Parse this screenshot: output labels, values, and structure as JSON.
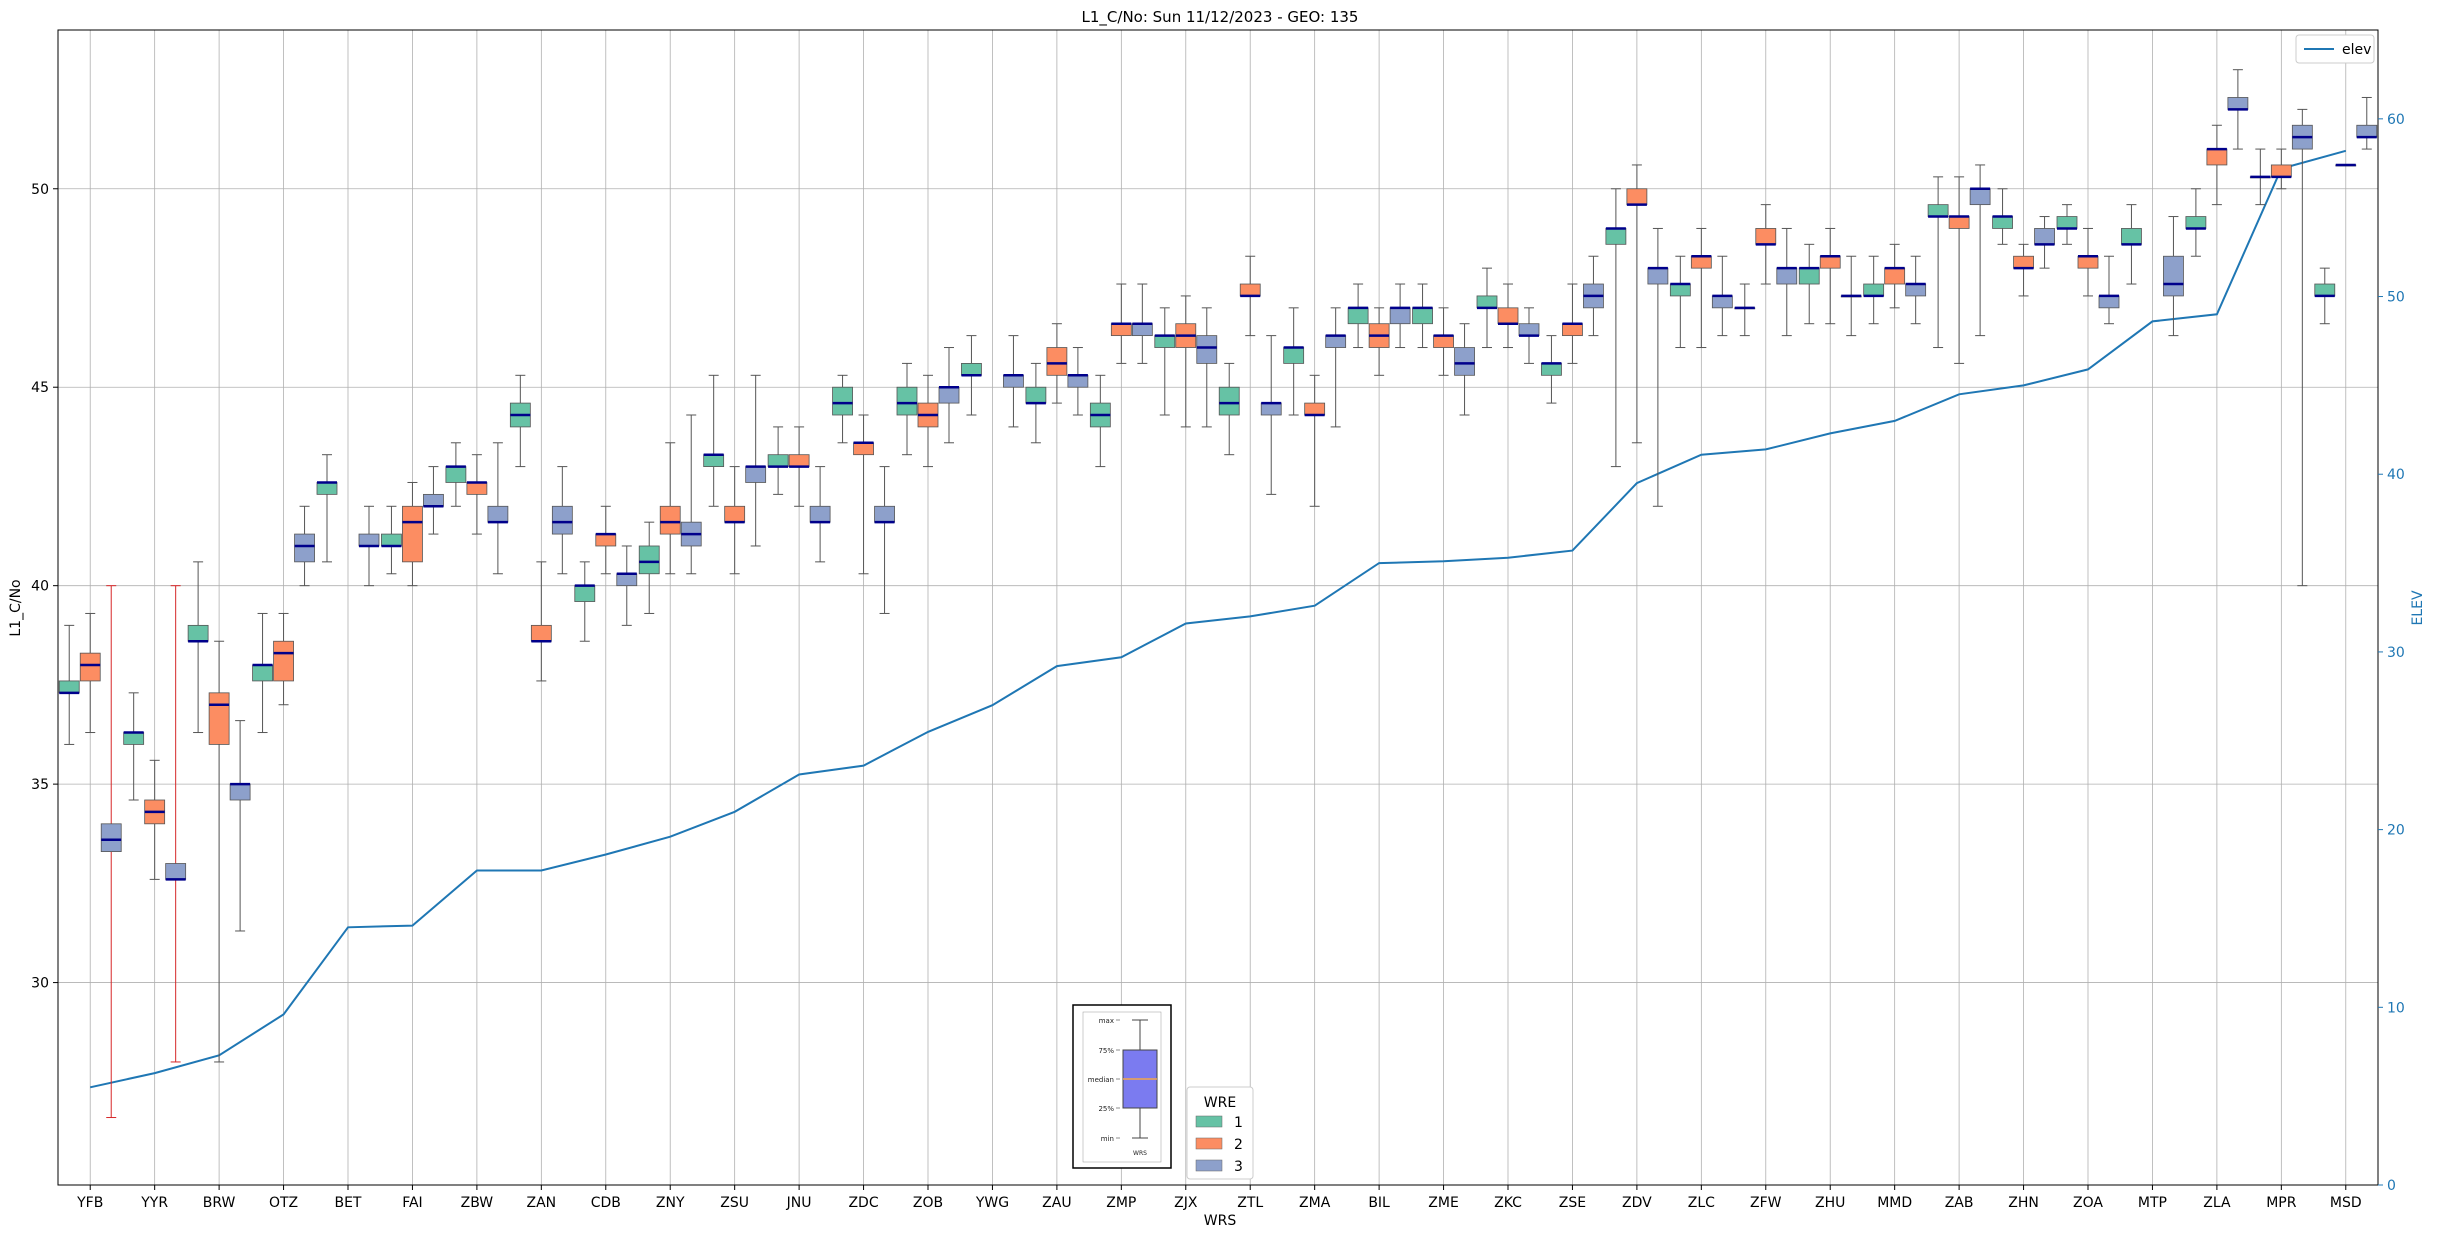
{
  "chart_data": {
    "type": "box",
    "title": "L1_C/No: Sun 11/12/2023 - GEO: 135",
    "xlabel": "WRS",
    "ylabel": "L1_C/No",
    "y2label": "ELEV",
    "ylim": [
      24.9,
      54.0
    ],
    "y2lim": [
      0,
      65
    ],
    "yticks": [
      30,
      35,
      40,
      45,
      50
    ],
    "y2ticks": [
      0,
      10,
      20,
      30,
      40,
      50,
      60
    ],
    "grid": true,
    "categories": [
      "YFB",
      "YYR",
      "BRW",
      "OTZ",
      "BET",
      "FAI",
      "ZBW",
      "ZAN",
      "CDB",
      "ZNY",
      "ZSU",
      "JNU",
      "ZDC",
      "ZOB",
      "YWG",
      "ZAU",
      "ZMP",
      "ZJX",
      "ZTL",
      "ZMA",
      "BIL",
      "ZME",
      "ZKC",
      "ZSE",
      "ZDV",
      "ZLC",
      "ZFW",
      "ZHU",
      "MMD",
      "ZAB",
      "ZHN",
      "ZOA",
      "MTP",
      "ZLA",
      "MPR",
      "MSD"
    ],
    "colors": {
      "1": "#66c2a5",
      "2": "#fc8d62",
      "3": "#8da0cb",
      "median": "#00008b",
      "elev": "#1f77b4",
      "whisker": "#555555",
      "outlier_whisker": "#d62728"
    },
    "legend_boxes": {
      "title": "WRE",
      "entries": [
        "1",
        "2",
        "3"
      ],
      "placement": "bottom-center"
    },
    "legend_line": {
      "entries": [
        "elev"
      ],
      "placement": "top-right"
    },
    "inset_labels": [
      "max",
      "75%",
      "median",
      "25%",
      "min",
      "WRS"
    ],
    "elev": [
      5.5,
      6.3,
      7.3,
      9.6,
      14.5,
      14.6,
      17.7,
      17.7,
      18.6,
      19.6,
      21.0,
      23.1,
      23.6,
      25.5,
      27.0,
      29.2,
      29.7,
      31.6,
      32.0,
      32.6,
      35.0,
      35.1,
      35.3,
      35.7,
      39.5,
      41.1,
      41.4,
      42.3,
      43.0,
      44.5,
      45.0,
      45.9,
      48.6,
      49.0,
      57.2,
      58.2
    ],
    "boxes": [
      {
        "cat": "YFB",
        "wre": 1,
        "min": 36.0,
        "q1": 37.3,
        "median": 37.3,
        "q3": 37.6,
        "max": 39.0
      },
      {
        "cat": "YFB",
        "wre": 2,
        "min": 36.3,
        "q1": 37.6,
        "median": 38.0,
        "q3": 38.3,
        "max": 39.3
      },
      {
        "cat": "YFB",
        "wre": 3,
        "min": 26.6,
        "q1": 33.3,
        "median": 33.6,
        "q3": 34.0,
        "max": 40.0,
        "outlier": true
      },
      {
        "cat": "YYR",
        "wre": 1,
        "min": 34.6,
        "q1": 36.0,
        "median": 36.3,
        "q3": 36.3,
        "max": 37.3
      },
      {
        "cat": "YYR",
        "wre": 2,
        "min": 32.6,
        "q1": 34.0,
        "median": 34.3,
        "q3": 34.6,
        "max": 35.6
      },
      {
        "cat": "YYR",
        "wre": 3,
        "min": 28.0,
        "q1": 32.6,
        "median": 32.6,
        "q3": 33.0,
        "max": 40.0,
        "outlier": true
      },
      {
        "cat": "BRW",
        "wre": 1,
        "min": 36.3,
        "q1": 38.6,
        "median": 38.6,
        "q3": 39.0,
        "max": 40.6
      },
      {
        "cat": "BRW",
        "wre": 2,
        "min": 28.0,
        "q1": 36.0,
        "median": 37.0,
        "q3": 37.3,
        "max": 38.6
      },
      {
        "cat": "BRW",
        "wre": 3,
        "min": 31.3,
        "q1": 34.6,
        "median": 35.0,
        "q3": 35.0,
        "max": 36.6
      },
      {
        "cat": "OTZ",
        "wre": 1,
        "min": 36.3,
        "q1": 37.6,
        "median": 38.0,
        "q3": 38.0,
        "max": 39.3
      },
      {
        "cat": "OTZ",
        "wre": 2,
        "min": 37.0,
        "q1": 37.6,
        "median": 38.3,
        "q3": 38.6,
        "max": 39.3
      },
      {
        "cat": "OTZ",
        "wre": 3,
        "min": 40.0,
        "q1": 40.6,
        "median": 41.0,
        "q3": 41.3,
        "max": 42.0
      },
      {
        "cat": "BET",
        "wre": 1,
        "min": 40.6,
        "q1": 42.3,
        "median": 42.6,
        "q3": 42.6,
        "max": 43.3
      },
      {
        "cat": "BET",
        "wre": 3,
        "min": 40.0,
        "q1": 41.0,
        "median": 41.0,
        "q3": 41.3,
        "max": 42.0
      },
      {
        "cat": "FAI",
        "wre": 1,
        "min": 40.3,
        "q1": 41.0,
        "median": 41.0,
        "q3": 41.3,
        "max": 42.0
      },
      {
        "cat": "FAI",
        "wre": 2,
        "min": 40.0,
        "q1": 40.6,
        "median": 41.6,
        "q3": 42.0,
        "max": 42.6
      },
      {
        "cat": "FAI",
        "wre": 3,
        "min": 41.3,
        "q1": 42.0,
        "median": 42.0,
        "q3": 42.3,
        "max": 43.0
      },
      {
        "cat": "ZBW",
        "wre": 1,
        "min": 42.0,
        "q1": 42.6,
        "median": 43.0,
        "q3": 43.0,
        "max": 43.6
      },
      {
        "cat": "ZBW",
        "wre": 2,
        "min": 41.3,
        "q1": 42.3,
        "median": 42.6,
        "q3": 42.6,
        "max": 43.3
      },
      {
        "cat": "ZBW",
        "wre": 3,
        "min": 40.3,
        "q1": 41.6,
        "median": 41.6,
        "q3": 42.0,
        "max": 43.6
      },
      {
        "cat": "ZAN",
        "wre": 1,
        "min": 43.0,
        "q1": 44.0,
        "median": 44.3,
        "q3": 44.6,
        "max": 45.3
      },
      {
        "cat": "ZAN",
        "wre": 2,
        "min": 37.6,
        "q1": 38.6,
        "median": 38.6,
        "q3": 39.0,
        "max": 40.6
      },
      {
        "cat": "ZAN",
        "wre": 3,
        "min": 40.3,
        "q1": 41.3,
        "median": 41.6,
        "q3": 42.0,
        "max": 43.0
      },
      {
        "cat": "CDB",
        "wre": 1,
        "min": 38.6,
        "q1": 39.6,
        "median": 40.0,
        "q3": 40.0,
        "max": 40.6
      },
      {
        "cat": "CDB",
        "wre": 2,
        "min": 40.3,
        "q1": 41.0,
        "median": 41.3,
        "q3": 41.3,
        "max": 42.0
      },
      {
        "cat": "CDB",
        "wre": 3,
        "min": 39.0,
        "q1": 40.0,
        "median": 40.3,
        "q3": 40.3,
        "max": 41.0
      },
      {
        "cat": "ZNY",
        "wre": 1,
        "min": 39.3,
        "q1": 40.3,
        "median": 40.6,
        "q3": 41.0,
        "max": 41.6
      },
      {
        "cat": "ZNY",
        "wre": 2,
        "min": 40.3,
        "q1": 41.3,
        "median": 41.6,
        "q3": 42.0,
        "max": 43.6
      },
      {
        "cat": "ZNY",
        "wre": 3,
        "min": 40.3,
        "q1": 41.0,
        "median": 41.3,
        "q3": 41.6,
        "max": 44.3
      },
      {
        "cat": "ZSU",
        "wre": 1,
        "min": 42.0,
        "q1": 43.0,
        "median": 43.3,
        "q3": 43.3,
        "max": 45.3
      },
      {
        "cat": "ZSU",
        "wre": 2,
        "min": 40.3,
        "q1": 41.6,
        "median": 41.6,
        "q3": 42.0,
        "max": 43.0
      },
      {
        "cat": "ZSU",
        "wre": 3,
        "min": 41.0,
        "q1": 42.6,
        "median": 43.0,
        "q3": 43.0,
        "max": 45.3
      },
      {
        "cat": "JNU",
        "wre": 1,
        "min": 42.3,
        "q1": 43.0,
        "median": 43.0,
        "q3": 43.3,
        "max": 44.0
      },
      {
        "cat": "JNU",
        "wre": 2,
        "min": 42.0,
        "q1": 43.0,
        "median": 43.0,
        "q3": 43.3,
        "max": 44.0
      },
      {
        "cat": "JNU",
        "wre": 3,
        "min": 40.6,
        "q1": 41.6,
        "median": 41.6,
        "q3": 42.0,
        "max": 43.0
      },
      {
        "cat": "ZDC",
        "wre": 1,
        "min": 43.6,
        "q1": 44.3,
        "median": 44.6,
        "q3": 45.0,
        "max": 45.3
      },
      {
        "cat": "ZDC",
        "wre": 2,
        "min": 40.3,
        "q1": 43.3,
        "median": 43.6,
        "q3": 43.6,
        "max": 44.3
      },
      {
        "cat": "ZDC",
        "wre": 3,
        "min": 39.3,
        "q1": 41.6,
        "median": 41.6,
        "q3": 42.0,
        "max": 43.0
      },
      {
        "cat": "ZOB",
        "wre": 1,
        "min": 43.3,
        "q1": 44.3,
        "median": 44.6,
        "q3": 45.0,
        "max": 45.6
      },
      {
        "cat": "ZOB",
        "wre": 2,
        "min": 43.0,
        "q1": 44.0,
        "median": 44.3,
        "q3": 44.6,
        "max": 45.3
      },
      {
        "cat": "ZOB",
        "wre": 3,
        "min": 43.6,
        "q1": 44.6,
        "median": 45.0,
        "q3": 45.0,
        "max": 46.0
      },
      {
        "cat": "YWG",
        "wre": 1,
        "min": 44.3,
        "q1": 45.3,
        "median": 45.3,
        "q3": 45.6,
        "max": 46.3
      },
      {
        "cat": "YWG",
        "wre": 3,
        "min": 44.0,
        "q1": 45.0,
        "median": 45.3,
        "q3": 45.3,
        "max": 46.3
      },
      {
        "cat": "ZAU",
        "wre": 1,
        "min": 43.6,
        "q1": 44.6,
        "median": 44.6,
        "q3": 45.0,
        "max": 45.6
      },
      {
        "cat": "ZAU",
        "wre": 2,
        "min": 44.6,
        "q1": 45.3,
        "median": 45.6,
        "q3": 46.0,
        "max": 46.6
      },
      {
        "cat": "ZAU",
        "wre": 3,
        "min": 44.3,
        "q1": 45.0,
        "median": 45.3,
        "q3": 45.3,
        "max": 46.0
      },
      {
        "cat": "ZMP",
        "wre": 1,
        "min": 43.0,
        "q1": 44.0,
        "median": 44.3,
        "q3": 44.6,
        "max": 45.3
      },
      {
        "cat": "ZMP",
        "wre": 2,
        "min": 45.6,
        "q1": 46.3,
        "median": 46.6,
        "q3": 46.6,
        "max": 47.6
      },
      {
        "cat": "ZMP",
        "wre": 3,
        "min": 45.6,
        "q1": 46.3,
        "median": 46.6,
        "q3": 46.6,
        "max": 47.6
      },
      {
        "cat": "ZJX",
        "wre": 1,
        "min": 44.3,
        "q1": 46.0,
        "median": 46.3,
        "q3": 46.3,
        "max": 47.0
      },
      {
        "cat": "ZJX",
        "wre": 2,
        "min": 44.0,
        "q1": 46.0,
        "median": 46.3,
        "q3": 46.6,
        "max": 47.3
      },
      {
        "cat": "ZJX",
        "wre": 3,
        "min": 44.0,
        "q1": 45.6,
        "median": 46.0,
        "q3": 46.3,
        "max": 47.0
      },
      {
        "cat": "ZTL",
        "wre": 1,
        "min": 43.3,
        "q1": 44.3,
        "median": 44.6,
        "q3": 45.0,
        "max": 45.6
      },
      {
        "cat": "ZTL",
        "wre": 2,
        "min": 46.3,
        "q1": 47.3,
        "median": 47.3,
        "q3": 47.6,
        "max": 48.3
      },
      {
        "cat": "ZTL",
        "wre": 3,
        "min": 42.3,
        "q1": 44.3,
        "median": 44.6,
        "q3": 44.6,
        "max": 46.3
      },
      {
        "cat": "ZMA",
        "wre": 1,
        "min": 44.3,
        "q1": 45.6,
        "median": 46.0,
        "q3": 46.0,
        "max": 47.0
      },
      {
        "cat": "ZMA",
        "wre": 2,
        "min": 42.0,
        "q1": 44.3,
        "median": 44.3,
        "q3": 44.6,
        "max": 45.3
      },
      {
        "cat": "ZMA",
        "wre": 3,
        "min": 44.0,
        "q1": 46.0,
        "median": 46.3,
        "q3": 46.3,
        "max": 47.0
      },
      {
        "cat": "BIL",
        "wre": 1,
        "min": 46.0,
        "q1": 46.6,
        "median": 47.0,
        "q3": 47.0,
        "max": 47.6
      },
      {
        "cat": "BIL",
        "wre": 2,
        "min": 45.3,
        "q1": 46.0,
        "median": 46.3,
        "q3": 46.6,
        "max": 47.0
      },
      {
        "cat": "BIL",
        "wre": 3,
        "min": 46.0,
        "q1": 46.6,
        "median": 47.0,
        "q3": 47.0,
        "max": 47.6
      },
      {
        "cat": "ZME",
        "wre": 1,
        "min": 46.0,
        "q1": 46.6,
        "median": 47.0,
        "q3": 47.0,
        "max": 47.6
      },
      {
        "cat": "ZME",
        "wre": 2,
        "min": 45.3,
        "q1": 46.0,
        "median": 46.3,
        "q3": 46.3,
        "max": 47.0
      },
      {
        "cat": "ZME",
        "wre": 3,
        "min": 44.3,
        "q1": 45.3,
        "median": 45.6,
        "q3": 46.0,
        "max": 46.6
      },
      {
        "cat": "ZKC",
        "wre": 1,
        "min": 46.0,
        "q1": 47.0,
        "median": 47.0,
        "q3": 47.3,
        "max": 48.0
      },
      {
        "cat": "ZKC",
        "wre": 2,
        "min": 46.0,
        "q1": 46.6,
        "median": 46.6,
        "q3": 47.0,
        "max": 47.6
      },
      {
        "cat": "ZKC",
        "wre": 3,
        "min": 45.6,
        "q1": 46.3,
        "median": 46.3,
        "q3": 46.6,
        "max": 47.0
      },
      {
        "cat": "ZSE",
        "wre": 1,
        "min": 44.6,
        "q1": 45.3,
        "median": 45.6,
        "q3": 45.6,
        "max": 46.3
      },
      {
        "cat": "ZSE",
        "wre": 2,
        "min": 45.6,
        "q1": 46.3,
        "median": 46.6,
        "q3": 46.6,
        "max": 47.6
      },
      {
        "cat": "ZSE",
        "wre": 3,
        "min": 46.3,
        "q1": 47.0,
        "median": 47.3,
        "q3": 47.6,
        "max": 48.3
      },
      {
        "cat": "ZDV",
        "wre": 1,
        "min": 43.0,
        "q1": 48.6,
        "median": 49.0,
        "q3": 49.0,
        "max": 50.0
      },
      {
        "cat": "ZDV",
        "wre": 2,
        "min": 43.6,
        "q1": 49.6,
        "median": 49.6,
        "q3": 50.0,
        "max": 50.6
      },
      {
        "cat": "ZDV",
        "wre": 3,
        "min": 42.0,
        "q1": 47.6,
        "median": 48.0,
        "q3": 48.0,
        "max": 49.0
      },
      {
        "cat": "ZLC",
        "wre": 1,
        "min": 46.0,
        "q1": 47.3,
        "median": 47.6,
        "q3": 47.6,
        "max": 48.3
      },
      {
        "cat": "ZLC",
        "wre": 2,
        "min": 46.0,
        "q1": 48.0,
        "median": 48.3,
        "q3": 48.3,
        "max": 49.0
      },
      {
        "cat": "ZLC",
        "wre": 3,
        "min": 46.3,
        "q1": 47.0,
        "median": 47.3,
        "q3": 47.3,
        "max": 48.3
      },
      {
        "cat": "ZFW",
        "wre": 1,
        "min": 46.3,
        "q1": 47.0,
        "median": 47.0,
        "q3": 47.0,
        "max": 47.6
      },
      {
        "cat": "ZFW",
        "wre": 2,
        "min": 47.6,
        "q1": 48.6,
        "median": 48.6,
        "q3": 49.0,
        "max": 49.6
      },
      {
        "cat": "ZFW",
        "wre": 3,
        "min": 46.3,
        "q1": 47.6,
        "median": 48.0,
        "q3": 48.0,
        "max": 49.0
      },
      {
        "cat": "ZHU",
        "wre": 1,
        "min": 46.6,
        "q1": 47.6,
        "median": 48.0,
        "q3": 48.0,
        "max": 48.6
      },
      {
        "cat": "ZHU",
        "wre": 2,
        "min": 46.6,
        "q1": 48.0,
        "median": 48.3,
        "q3": 48.3,
        "max": 49.0
      },
      {
        "cat": "ZHU",
        "wre": 3,
        "min": 46.3,
        "q1": 47.3,
        "median": 47.3,
        "q3": 47.3,
        "max": 48.3
      },
      {
        "cat": "MMD",
        "wre": 1,
        "min": 46.6,
        "q1": 47.3,
        "median": 47.3,
        "q3": 47.6,
        "max": 48.3
      },
      {
        "cat": "MMD",
        "wre": 2,
        "min": 47.0,
        "q1": 47.6,
        "median": 48.0,
        "q3": 48.0,
        "max": 48.6
      },
      {
        "cat": "MMD",
        "wre": 3,
        "min": 46.6,
        "q1": 47.3,
        "median": 47.6,
        "q3": 47.6,
        "max": 48.3
      },
      {
        "cat": "ZAB",
        "wre": 1,
        "min": 46.0,
        "q1": 49.3,
        "median": 49.3,
        "q3": 49.6,
        "max": 50.3
      },
      {
        "cat": "ZAB",
        "wre": 2,
        "min": 45.6,
        "q1": 49.0,
        "median": 49.3,
        "q3": 49.3,
        "max": 50.3
      },
      {
        "cat": "ZAB",
        "wre": 3,
        "min": 46.3,
        "q1": 49.6,
        "median": 50.0,
        "q3": 50.0,
        "max": 50.6
      },
      {
        "cat": "ZHN",
        "wre": 1,
        "min": 48.6,
        "q1": 49.0,
        "median": 49.3,
        "q3": 49.3,
        "max": 50.0
      },
      {
        "cat": "ZHN",
        "wre": 2,
        "min": 47.3,
        "q1": 48.0,
        "median": 48.0,
        "q3": 48.3,
        "max": 48.6
      },
      {
        "cat": "ZHN",
        "wre": 3,
        "min": 48.0,
        "q1": 48.6,
        "median": 48.6,
        "q3": 49.0,
        "max": 49.3
      },
      {
        "cat": "ZOA",
        "wre": 1,
        "min": 48.6,
        "q1": 49.0,
        "median": 49.0,
        "q3": 49.3,
        "max": 49.6
      },
      {
        "cat": "ZOA",
        "wre": 2,
        "min": 47.3,
        "q1": 48.0,
        "median": 48.3,
        "q3": 48.3,
        "max": 49.0
      },
      {
        "cat": "ZOA",
        "wre": 3,
        "min": 46.6,
        "q1": 47.0,
        "median": 47.3,
        "q3": 47.3,
        "max": 48.3
      },
      {
        "cat": "MTP",
        "wre": 1,
        "min": 47.6,
        "q1": 48.6,
        "median": 48.6,
        "q3": 49.0,
        "max": 49.6
      },
      {
        "cat": "MTP",
        "wre": 3,
        "min": 46.3,
        "q1": 47.3,
        "median": 47.6,
        "q3": 48.3,
        "max": 49.3
      },
      {
        "cat": "ZLA",
        "wre": 1,
        "min": 48.3,
        "q1": 49.0,
        "median": 49.0,
        "q3": 49.3,
        "max": 50.0
      },
      {
        "cat": "ZLA",
        "wre": 2,
        "min": 49.6,
        "q1": 50.6,
        "median": 51.0,
        "q3": 51.0,
        "max": 51.6
      },
      {
        "cat": "ZLA",
        "wre": 3,
        "min": 51.0,
        "q1": 52.0,
        "median": 52.0,
        "q3": 52.3,
        "max": 53.0
      },
      {
        "cat": "MPR",
        "wre": 1,
        "min": 49.6,
        "q1": 50.3,
        "median": 50.3,
        "q3": 50.3,
        "max": 51.0
      },
      {
        "cat": "MPR",
        "wre": 2,
        "min": 50.0,
        "q1": 50.3,
        "median": 50.3,
        "q3": 50.6,
        "max": 51.0
      },
      {
        "cat": "MPR",
        "wre": 3,
        "min": 40.0,
        "q1": 51.0,
        "median": 51.3,
        "q3": 51.6,
        "max": 52.0
      },
      {
        "cat": "MSD",
        "wre": 1,
        "min": 46.6,
        "q1": 47.3,
        "median": 47.3,
        "q3": 47.6,
        "max": 48.0
      },
      {
        "cat": "MSD",
        "wre": 2,
        "min": 50.6,
        "q1": 50.6,
        "median": 50.6,
        "q3": 50.6,
        "max": 50.6
      },
      {
        "cat": "MSD",
        "wre": 3,
        "min": 51.0,
        "q1": 51.3,
        "median": 51.3,
        "q3": 51.6,
        "max": 52.3
      }
    ]
  }
}
